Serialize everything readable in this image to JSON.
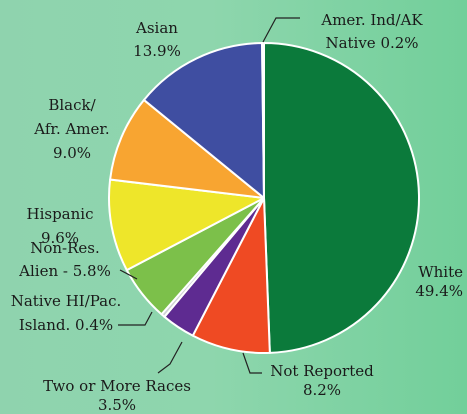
{
  "chart_data": {
    "type": "pie",
    "slices": [
      {
        "label": "White",
        "value_label": "49.4%",
        "value": 49.4,
        "color": "#0b7a3b"
      },
      {
        "label": "Not Reported",
        "value_label": "8.2%",
        "value": 8.2,
        "color": "#ef4a23"
      },
      {
        "label": "Two or More Races",
        "value_label": "3.5%",
        "value": 3.5,
        "color": "#5e2b91"
      },
      {
        "label": "Native HI/Pac. Island.",
        "value_label": "0.4%",
        "value": 0.4,
        "color": "#cfd2d4"
      },
      {
        "label": "Non-Res. Alien",
        "value_label": "5.8%",
        "value": 5.8,
        "color": "#7cc04a"
      },
      {
        "label": "Hispanic",
        "value_label": "9.6%",
        "value": 9.6,
        "color": "#eee62a"
      },
      {
        "label": "Black/ Afr. Amer.",
        "value_label": "9.0%",
        "value": 9.0,
        "color": "#f8a531"
      },
      {
        "label": "Asian",
        "value_label": "13.9%",
        "value": 13.9,
        "color": "#3f4ea1"
      },
      {
        "label": "Amer. Ind/AK Native",
        "value_label": "0.2%",
        "value": 0.2,
        "color": "#1c1c1c"
      }
    ]
  },
  "labels": {
    "white": {
      "line1": "White",
      "line2": "49.4%"
    },
    "not_reported": {
      "line1": "Not Reported",
      "line2": "8.2%"
    },
    "two_or_more": {
      "line1": "Two or More Races",
      "line2": "3.5%"
    },
    "native_hi": {
      "line1": "Native HI/Pac.",
      "line2": "Island. 0.4%"
    },
    "non_res": {
      "line1": "Non-Res.",
      "line2": "Alien - 5.8%"
    },
    "hispanic": {
      "line1": "Hispanic",
      "line2": "9.6%"
    },
    "black": {
      "line1": "Black/",
      "line2": "Afr. Amer.",
      "line3": "9.0%"
    },
    "asian": {
      "line1": "Asian",
      "line2": "13.9%"
    },
    "amer_ind": {
      "line1": "Amer. Ind/AK",
      "line2": "Native 0.2%"
    }
  }
}
